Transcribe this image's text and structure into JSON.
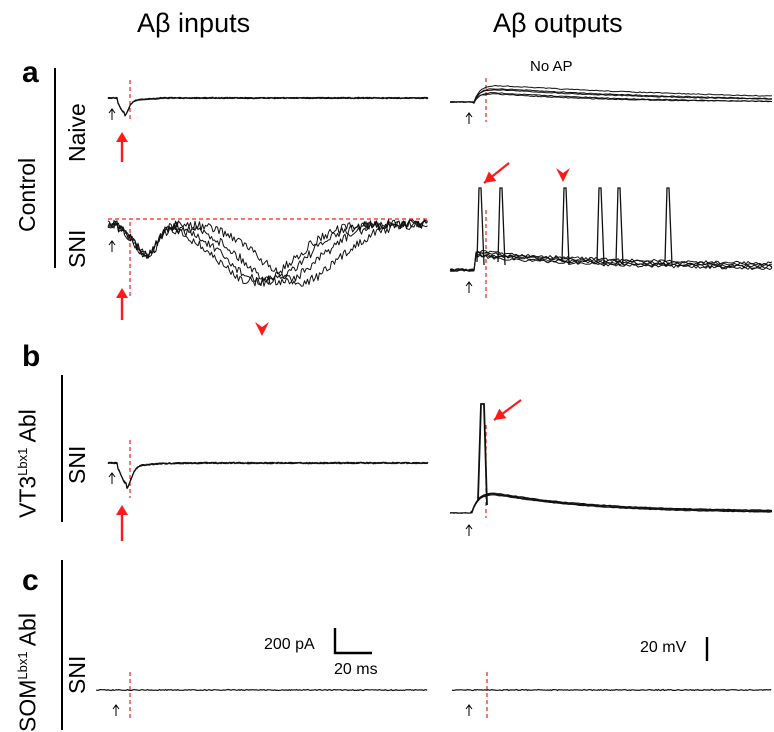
{
  "columns": {
    "inputs_title": "Aβ inputs",
    "outputs_title": "Aβ outputs"
  },
  "panels": {
    "a": {
      "letter": "a",
      "group_label": "Control",
      "rows": {
        "naive": "Naive",
        "sni": "SNI"
      },
      "annotation": "No AP"
    },
    "b": {
      "letter": "b",
      "group_label": {
        "prefix": "VT3",
        "superscript": "Lbx1",
        "suffix": " Abl"
      },
      "row": "SNI"
    },
    "c": {
      "letter": "c",
      "group_label": {
        "prefix": "SOM",
        "superscript": "Lbx1",
        "suffix": " Abl"
      },
      "row": "SNI"
    }
  },
  "scale_bars": {
    "current": "200 pA",
    "time": "20 ms",
    "voltage": "20 mV"
  },
  "colors": {
    "trace": "#111111",
    "marker": "#ff1a1a",
    "stimulus_arrow": "#000000"
  },
  "icons": {
    "stimulus": "up-arrow-icon",
    "response_onset": "red-arrow-icon",
    "late_response": "red-arrowhead-icon"
  }
}
